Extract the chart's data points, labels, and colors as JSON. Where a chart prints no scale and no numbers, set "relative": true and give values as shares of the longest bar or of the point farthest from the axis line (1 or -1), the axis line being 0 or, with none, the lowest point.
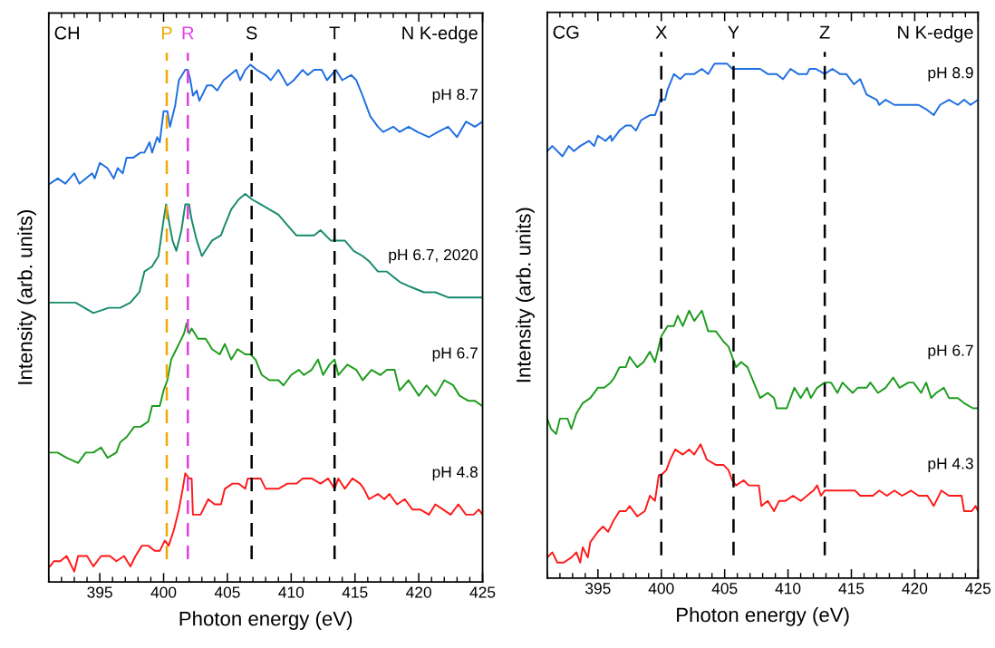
{
  "chart_data": [
    {
      "type": "line",
      "relative": true,
      "xlabel": "Photon energy (eV)",
      "ylabel": "Intensity (arb. units)",
      "annotations": [
        "CH",
        "N K-edge"
      ],
      "tick_labels": "x",
      "xlim": [
        391,
        425
      ],
      "xticks": [
        395,
        400,
        405,
        410,
        415,
        420,
        425,
        {
          "value": 391,
          "label": null
        },
        {
          "value": 392,
          "label": null
        },
        {
          "value": 393,
          "label": null
        },
        {
          "value": 394,
          "label": null
        },
        {
          "value": 396,
          "label": null
        },
        {
          "value": 397,
          "label": null
        },
        {
          "value": 398,
          "label": null
        },
        {
          "value": 399,
          "label": null
        },
        {
          "value": 401,
          "label": null
        },
        {
          "value": 402,
          "label": null
        },
        {
          "value": 403,
          "label": null
        },
        {
          "value": 404,
          "label": null
        },
        {
          "value": 406,
          "label": null
        },
        {
          "value": 407,
          "label": null
        },
        {
          "value": 408,
          "label": null
        },
        {
          "value": 409,
          "label": null
        },
        {
          "value": 411,
          "label": null
        },
        {
          "value": 412,
          "label": null
        },
        {
          "value": 413,
          "label": null
        },
        {
          "value": 414,
          "label": null
        },
        {
          "value": 416,
          "label": null
        },
        {
          "value": 417,
          "label": null
        },
        {
          "value": 418,
          "label": null
        },
        {
          "value": 419,
          "label": null
        },
        {
          "value": 421,
          "label": null
        },
        {
          "value": 422,
          "label": null
        },
        {
          "value": 423,
          "label": null
        },
        {
          "value": 424,
          "label": null
        }
      ],
      "ref_lines": [
        {
          "axis": "x",
          "value": 400.25,
          "label": "P",
          "color": "#f0a800",
          "line_style": "dashed"
        },
        {
          "axis": "x",
          "value": 401.9,
          "label": "R",
          "color": "#e040e0",
          "line_style": "dashed"
        },
        {
          "axis": "x",
          "value": 406.9,
          "label": "S",
          "color": "#000000",
          "line_style": "dashed"
        },
        {
          "axis": "x",
          "value": 413.4,
          "label": "T",
          "color": "#000000",
          "line_style": "dashed"
        }
      ],
      "series": [
        {
          "name": "pH 8.7",
          "color": "#1f6fe0",
          "x": [
            391.1,
            391.7,
            392.3,
            393.0,
            393.4,
            394.4,
            394.6,
            395.0,
            395.6,
            396.1,
            396.4,
            396.8,
            397.1,
            397.6,
            398.2,
            398.5,
            398.9,
            399.1,
            399.5,
            399.7,
            400.0,
            400.3,
            400.5,
            400.9,
            401.2,
            401.7,
            401.9,
            402.1,
            402.3,
            402.6,
            402.8,
            403.4,
            403.8,
            404.2,
            404.7,
            405.2,
            405.7,
            406.0,
            406.4,
            406.8,
            407.3,
            408.0,
            408.4,
            409.0,
            409.7,
            410.2,
            410.9,
            411.3,
            411.8,
            412.4,
            412.8,
            413.5,
            414.0,
            414.7,
            415.1,
            415.6,
            416.2,
            416.8,
            417.2,
            418.0,
            418.5,
            419.2,
            419.9,
            420.8,
            421.5,
            422.3,
            423.0,
            423.7,
            424.4,
            425.0
          ],
          "values": [
            0.77,
            0.78,
            0.77,
            0.79,
            0.77,
            0.79,
            0.78,
            0.81,
            0.8,
            0.78,
            0.8,
            0.79,
            0.82,
            0.82,
            0.83,
            0.83,
            0.85,
            0.83,
            0.86,
            0.85,
            0.91,
            0.91,
            0.88,
            0.92,
            0.97,
            0.99,
            0.99,
            0.97,
            0.94,
            0.95,
            0.93,
            0.96,
            0.96,
            0.95,
            0.97,
            0.98,
            0.99,
            0.97,
            0.99,
            1.0,
            0.99,
            0.98,
            0.97,
            0.99,
            0.96,
            0.97,
            0.99,
            0.98,
            0.99,
            0.99,
            0.97,
            0.99,
            0.97,
            0.98,
            0.97,
            0.94,
            0.9,
            0.88,
            0.87,
            0.88,
            0.87,
            0.88,
            0.87,
            0.86,
            0.87,
            0.88,
            0.86,
            0.89,
            0.88,
            0.89
          ]
        },
        {
          "name": "pH 6.7, 2020",
          "color": "#168a6c",
          "x": [
            391.1,
            392.4,
            393.1,
            393.8,
            394.5,
            395.7,
            396.6,
            397.4,
            398.1,
            398.5,
            399.1,
            399.6,
            400.0,
            400.2,
            400.4,
            400.7,
            401.0,
            401.4,
            401.7,
            402.0,
            402.2,
            402.6,
            403.0,
            403.8,
            404.5,
            404.8,
            405.3,
            405.9,
            406.4,
            406.9,
            407.6,
            408.3,
            409.0,
            409.7,
            410.4,
            411.1,
            411.8,
            412.3,
            413.1,
            413.5,
            414.2,
            414.9,
            415.6,
            416.1,
            416.8,
            417.5,
            418.5,
            419.4,
            420.4,
            421.3,
            422.3,
            423.2,
            424.1,
            425.0
          ],
          "values": [
            0.54,
            0.54,
            0.54,
            0.53,
            0.52,
            0.53,
            0.53,
            0.54,
            0.56,
            0.6,
            0.61,
            0.63,
            0.7,
            0.73,
            0.7,
            0.66,
            0.64,
            0.68,
            0.73,
            0.73,
            0.7,
            0.66,
            0.63,
            0.66,
            0.67,
            0.69,
            0.72,
            0.74,
            0.75,
            0.74,
            0.73,
            0.72,
            0.71,
            0.69,
            0.67,
            0.67,
            0.67,
            0.68,
            0.66,
            0.66,
            0.66,
            0.64,
            0.63,
            0.62,
            0.6,
            0.6,
            0.58,
            0.57,
            0.56,
            0.56,
            0.55,
            0.55,
            0.55,
            0.55
          ]
        },
        {
          "name": "pH 6.7",
          "color": "#1c9c1c",
          "x": [
            391.1,
            391.7,
            392.4,
            393.3,
            393.9,
            394.5,
            395.1,
            395.6,
            396.3,
            396.6,
            397.1,
            397.7,
            398.2,
            398.8,
            399.1,
            399.7,
            400.0,
            400.3,
            400.6,
            401.0,
            401.4,
            401.6,
            401.8,
            402.0,
            402.2,
            402.7,
            403.3,
            403.8,
            404.4,
            404.8,
            405.3,
            405.8,
            406.4,
            406.8,
            407.2,
            407.7,
            408.3,
            409.0,
            409.4,
            410.0,
            410.6,
            411.0,
            411.6,
            412.1,
            412.5,
            413.0,
            413.4,
            413.7,
            414.4,
            415.1,
            415.6,
            416.3,
            417.0,
            417.5,
            418.1,
            418.5,
            419.2,
            420.0,
            420.6,
            421.3,
            422.0,
            422.7,
            423.2,
            423.9,
            424.4,
            425.0
          ],
          "values": [
            0.25,
            0.25,
            0.24,
            0.23,
            0.25,
            0.25,
            0.26,
            0.24,
            0.25,
            0.27,
            0.28,
            0.3,
            0.3,
            0.31,
            0.34,
            0.34,
            0.37,
            0.39,
            0.43,
            0.45,
            0.47,
            0.48,
            0.5,
            0.48,
            0.49,
            0.47,
            0.47,
            0.45,
            0.44,
            0.46,
            0.43,
            0.45,
            0.44,
            0.44,
            0.43,
            0.4,
            0.39,
            0.39,
            0.38,
            0.4,
            0.41,
            0.4,
            0.41,
            0.43,
            0.4,
            0.42,
            0.43,
            0.4,
            0.42,
            0.41,
            0.39,
            0.41,
            0.4,
            0.41,
            0.41,
            0.37,
            0.39,
            0.36,
            0.38,
            0.36,
            0.39,
            0.38,
            0.36,
            0.35,
            0.35,
            0.34
          ]
        },
        {
          "name": "pH 4.8",
          "color": "#ff1a1a",
          "x": [
            391.1,
            391.4,
            391.9,
            392.4,
            393.0,
            393.3,
            394.0,
            394.5,
            395.1,
            395.8,
            396.3,
            396.9,
            397.4,
            397.8,
            398.3,
            398.8,
            399.3,
            399.7,
            400.1,
            400.4,
            400.8,
            401.2,
            401.5,
            401.7,
            402.0,
            402.2,
            402.3,
            402.6,
            402.9,
            403.5,
            404.0,
            404.5,
            404.8,
            405.4,
            405.9,
            406.4,
            406.6,
            407.0,
            407.6,
            408.0,
            408.5,
            409.0,
            409.7,
            410.4,
            410.9,
            411.6,
            412.3,
            412.9,
            413.4,
            413.7,
            414.2,
            414.8,
            415.4,
            415.7,
            416.1,
            416.8,
            417.3,
            417.7,
            418.3,
            418.9,
            419.5,
            420.1,
            420.8,
            421.3,
            421.9,
            422.5,
            423.1,
            423.7,
            424.3,
            424.7,
            425.0
          ],
          "values": [
            0.03,
            0.04,
            0.04,
            0.05,
            0.02,
            0.05,
            0.05,
            0.03,
            0.05,
            0.05,
            0.04,
            0.05,
            0.03,
            0.05,
            0.07,
            0.07,
            0.06,
            0.06,
            0.08,
            0.07,
            0.1,
            0.14,
            0.18,
            0.21,
            0.2,
            0.2,
            0.13,
            0.13,
            0.13,
            0.16,
            0.15,
            0.15,
            0.18,
            0.19,
            0.19,
            0.18,
            0.2,
            0.2,
            0.2,
            0.18,
            0.18,
            0.18,
            0.19,
            0.19,
            0.2,
            0.2,
            0.19,
            0.2,
            0.18,
            0.2,
            0.18,
            0.2,
            0.19,
            0.18,
            0.16,
            0.17,
            0.16,
            0.17,
            0.15,
            0.16,
            0.14,
            0.14,
            0.13,
            0.15,
            0.14,
            0.13,
            0.15,
            0.13,
            0.13,
            0.14,
            0.13
          ]
        }
      ]
    },
    {
      "type": "line",
      "relative": true,
      "xlabel": "Photon energy (eV)",
      "ylabel": "Intensity (arb. units)",
      "annotations": [
        "CG",
        "N K-edge"
      ],
      "tick_labels": "x",
      "xlim": [
        391,
        425
      ],
      "xticks": [
        395,
        400,
        405,
        410,
        415,
        420,
        425,
        {
          "value": 391,
          "label": null
        },
        {
          "value": 392,
          "label": null
        },
        {
          "value": 393,
          "label": null
        },
        {
          "value": 394,
          "label": null
        },
        {
          "value": 396,
          "label": null
        },
        {
          "value": 397,
          "label": null
        },
        {
          "value": 398,
          "label": null
        },
        {
          "value": 399,
          "label": null
        },
        {
          "value": 401,
          "label": null
        },
        {
          "value": 402,
          "label": null
        },
        {
          "value": 403,
          "label": null
        },
        {
          "value": 404,
          "label": null
        },
        {
          "value": 406,
          "label": null
        },
        {
          "value": 407,
          "label": null
        },
        {
          "value": 408,
          "label": null
        },
        {
          "value": 409,
          "label": null
        },
        {
          "value": 411,
          "label": null
        },
        {
          "value": 412,
          "label": null
        },
        {
          "value": 413,
          "label": null
        },
        {
          "value": 414,
          "label": null
        },
        {
          "value": 416,
          "label": null
        },
        {
          "value": 417,
          "label": null
        },
        {
          "value": 418,
          "label": null
        },
        {
          "value": 419,
          "label": null
        },
        {
          "value": 421,
          "label": null
        },
        {
          "value": 422,
          "label": null
        },
        {
          "value": 423,
          "label": null
        },
        {
          "value": 424,
          "label": null
        }
      ],
      "ref_lines": [
        {
          "axis": "x",
          "value": 400.0,
          "label": "X",
          "color": "#000000",
          "line_style": "dashed"
        },
        {
          "axis": "x",
          "value": 405.7,
          "label": "Y",
          "color": "#000000",
          "line_style": "dashed"
        },
        {
          "axis": "x",
          "value": 412.9,
          "label": "Z",
          "color": "#000000",
          "line_style": "dashed"
        }
      ],
      "series": [
        {
          "name": "pH 8.9",
          "color": "#1f6fe0",
          "x": [
            391.0,
            391.4,
            392.2,
            392.7,
            393.1,
            393.6,
            394.3,
            394.7,
            395.0,
            395.6,
            396.0,
            396.1,
            396.7,
            397.2,
            397.6,
            398.0,
            398.4,
            399.1,
            399.5,
            399.8,
            399.9,
            400.3,
            400.5,
            401.0,
            401.5,
            401.9,
            402.6,
            403.2,
            403.7,
            404.2,
            404.7,
            405.2,
            405.6,
            406.5,
            407.2,
            407.8,
            408.4,
            409.1,
            409.6,
            410.2,
            410.8,
            411.5,
            411.7,
            412.2,
            412.9,
            413.5,
            414.1,
            414.6,
            415.2,
            415.7,
            416.2,
            417.0,
            417.2,
            417.7,
            418.4,
            418.9,
            419.7,
            420.3,
            421.0,
            421.5,
            422.0,
            422.7,
            423.4,
            423.9,
            424.4,
            425.0
          ],
          "values": [
            0.83,
            0.84,
            0.82,
            0.84,
            0.83,
            0.84,
            0.85,
            0.84,
            0.86,
            0.85,
            0.86,
            0.85,
            0.87,
            0.88,
            0.88,
            0.87,
            0.89,
            0.9,
            0.9,
            0.92,
            0.93,
            0.93,
            0.95,
            0.98,
            0.97,
            0.98,
            0.98,
            0.99,
            0.98,
            1.0,
            1.0,
            1.0,
            0.99,
            0.99,
            0.99,
            0.99,
            0.98,
            0.98,
            0.97,
            0.99,
            0.98,
            0.98,
            0.99,
            0.99,
            0.98,
            0.99,
            0.98,
            0.98,
            0.96,
            0.97,
            0.94,
            0.93,
            0.92,
            0.93,
            0.92,
            0.92,
            0.92,
            0.92,
            0.91,
            0.9,
            0.92,
            0.93,
            0.92,
            0.93,
            0.92,
            0.93
          ]
        },
        {
          "name": "pH 6.7",
          "color": "#1c9c1c",
          "x": [
            391.0,
            391.3,
            391.7,
            392.0,
            392.6,
            392.9,
            393.3,
            393.8,
            394.4,
            395.0,
            395.5,
            396.0,
            396.3,
            396.7,
            397.2,
            397.5,
            398.1,
            398.6,
            399.1,
            399.5,
            400.0,
            400.5,
            401.0,
            401.3,
            401.7,
            402.2,
            402.6,
            403.2,
            403.7,
            404.3,
            404.9,
            405.3,
            405.6,
            405.9,
            406.3,
            406.8,
            407.3,
            407.8,
            408.4,
            408.9,
            409.1,
            409.4,
            409.9,
            410.5,
            411.0,
            411.5,
            411.8,
            412.3,
            412.9,
            413.4,
            413.9,
            414.3,
            415.1,
            415.5,
            416.2,
            416.5,
            417.1,
            417.7,
            418.3,
            418.8,
            419.5,
            419.9,
            420.5,
            420.9,
            421.3,
            421.7,
            422.3,
            422.7,
            423.4,
            423.9,
            424.6,
            425.0
          ],
          "values": [
            0.31,
            0.29,
            0.28,
            0.31,
            0.31,
            0.29,
            0.32,
            0.34,
            0.35,
            0.37,
            0.37,
            0.38,
            0.39,
            0.41,
            0.41,
            0.43,
            0.41,
            0.42,
            0.44,
            0.42,
            0.47,
            0.49,
            0.49,
            0.51,
            0.49,
            0.52,
            0.5,
            0.52,
            0.48,
            0.48,
            0.46,
            0.45,
            0.43,
            0.41,
            0.42,
            0.41,
            0.38,
            0.35,
            0.36,
            0.35,
            0.33,
            0.33,
            0.33,
            0.37,
            0.35,
            0.37,
            0.35,
            0.37,
            0.38,
            0.38,
            0.36,
            0.38,
            0.36,
            0.37,
            0.37,
            0.38,
            0.36,
            0.37,
            0.39,
            0.37,
            0.38,
            0.38,
            0.36,
            0.38,
            0.35,
            0.36,
            0.37,
            0.35,
            0.35,
            0.34,
            0.33,
            0.33
          ]
        },
        {
          "name": "pH 4.3",
          "color": "#ff1a1a",
          "x": [
            391.0,
            391.4,
            391.8,
            392.3,
            392.9,
            393.3,
            393.6,
            393.8,
            394.2,
            394.4,
            395.0,
            395.4,
            395.8,
            396.2,
            396.7,
            397.2,
            397.5,
            398.1,
            398.7,
            399.1,
            399.5,
            399.8,
            400.0,
            400.4,
            400.7,
            401.1,
            401.7,
            402.2,
            402.6,
            403.1,
            403.6,
            404.3,
            404.9,
            405.3,
            405.6,
            405.9,
            406.5,
            406.9,
            407.3,
            407.7,
            407.9,
            408.4,
            408.9,
            409.3,
            409.8,
            410.4,
            411.0,
            411.5,
            412.0,
            412.3,
            412.6,
            412.9,
            413.6,
            414.1,
            414.8,
            415.3,
            415.7,
            416.2,
            416.7,
            417.2,
            417.8,
            418.4,
            419.0,
            419.7,
            420.3,
            421.0,
            421.5,
            422.1,
            422.7,
            423.3,
            423.7,
            423.9,
            424.5,
            424.8,
            425.0
          ],
          "values": [
            0.04,
            0.05,
            0.03,
            0.03,
            0.04,
            0.05,
            0.03,
            0.06,
            0.04,
            0.07,
            0.09,
            0.1,
            0.09,
            0.11,
            0.13,
            0.13,
            0.14,
            0.12,
            0.13,
            0.16,
            0.15,
            0.2,
            0.2,
            0.21,
            0.23,
            0.25,
            0.24,
            0.25,
            0.24,
            0.26,
            0.23,
            0.22,
            0.22,
            0.21,
            0.19,
            0.18,
            0.19,
            0.18,
            0.18,
            0.18,
            0.14,
            0.15,
            0.13,
            0.15,
            0.15,
            0.16,
            0.15,
            0.16,
            0.17,
            0.18,
            0.16,
            0.17,
            0.17,
            0.17,
            0.17,
            0.17,
            0.16,
            0.16,
            0.16,
            0.17,
            0.16,
            0.17,
            0.16,
            0.17,
            0.16,
            0.16,
            0.14,
            0.17,
            0.16,
            0.16,
            0.16,
            0.13,
            0.13,
            0.14,
            0.13
          ]
        }
      ]
    }
  ]
}
